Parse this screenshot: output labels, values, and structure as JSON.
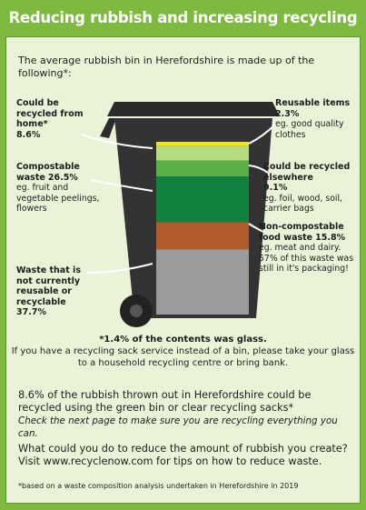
{
  "title": "Reducing rubbish and increasing recycling",
  "intro": "The average rubbish bin in Herefordshire is made up of the following*:",
  "bin": {
    "segments": [
      {
        "label": "Reusable items",
        "value": 2.3,
        "value_label": "2.3%",
        "note": "eg. good quality clothes",
        "color": "#f3e313"
      },
      {
        "label": "Could be recycled from home*",
        "value": 8.6,
        "value_label": "8.6%",
        "color": "#b5dc7c"
      },
      {
        "label": "Could be recycled elsewhere",
        "value": 9.1,
        "value_label": "9.1%",
        "note": "eg. foil, wood, soil, carrier bags",
        "color": "#58b046"
      },
      {
        "label": "Compostable waste",
        "value": 26.5,
        "value_label": "26.5%",
        "note": "eg. fruit and vegetable peelings, flowers",
        "color": "#11813f"
      },
      {
        "label": "Non-compostable food waste",
        "value": 15.8,
        "value_label": "15.8%",
        "note": "eg. meat and dairy. 57% of this waste was still in it's packaging!",
        "color": "#b15c2c"
      },
      {
        "label": "Waste that is not currently reusable or recyclable",
        "value": 37.7,
        "value_label": "37.7%",
        "color": "#9b9b9b"
      }
    ]
  },
  "glass_note": "*1.4% of the contents was glass.",
  "glass_advice": "If you have a recycling sack service instead of a bin, please take your glass to a household recycling centre or bring bank.",
  "summary": "8.6% of the rubbish thrown out in Herefordshire could be recycled using the green bin or clear recycling sacks*",
  "summary_italic": "Check the next page to make sure you are recycling everything you can.",
  "question": "What could you do to reduce the amount of rubbish you create? Visit www.recyclenow.com for tips on how to reduce waste.",
  "footnote": "*based on a waste composition analysis undertaken in Herefordshire in 2019"
}
